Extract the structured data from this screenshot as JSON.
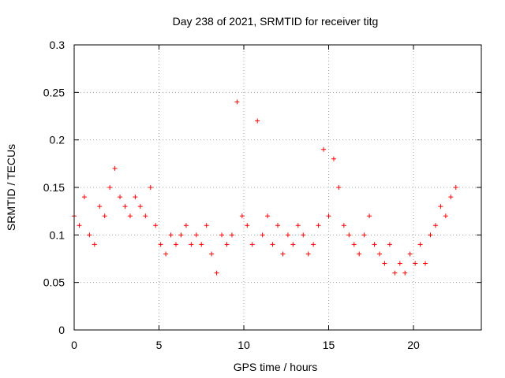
{
  "chart_data": {
    "type": "scatter",
    "title": "Day 238 of 2021, SRMTID for receiver titg",
    "xlabel": "GPS time / hours",
    "ylabel": "SRMTID / TECUs",
    "xlim": [
      0,
      24
    ],
    "ylim": [
      0,
      0.3
    ],
    "x_ticks": [
      0,
      5,
      10,
      15,
      20
    ],
    "x_tick_labels": [
      "0",
      "5",
      "10",
      "15",
      "20"
    ],
    "y_ticks": [
      0,
      0.05,
      0.1,
      0.15,
      0.2,
      0.25,
      0.3
    ],
    "y_tick_labels": [
      "0",
      "0.05",
      "0.1",
      "0.15",
      "0.2",
      "0.25",
      "0.3"
    ],
    "grid": true,
    "marker": "+",
    "color": "#ff0000",
    "series": [
      {
        "name": "SRMTID",
        "x": [
          0.0,
          0.3,
          0.6,
          0.9,
          1.2,
          1.5,
          1.8,
          2.1,
          2.4,
          2.7,
          3.0,
          3.3,
          3.6,
          3.9,
          4.2,
          4.5,
          4.8,
          5.1,
          5.4,
          5.7,
          6.0,
          6.3,
          6.6,
          6.9,
          7.2,
          7.5,
          7.8,
          8.1,
          8.4,
          8.7,
          9.0,
          9.3,
          9.6,
          9.9,
          10.2,
          10.5,
          10.8,
          11.1,
          11.4,
          11.7,
          12.0,
          12.3,
          12.6,
          12.9,
          13.2,
          13.5,
          13.8,
          14.1,
          14.4,
          14.7,
          15.0,
          15.3,
          15.6,
          15.9,
          16.2,
          16.5,
          16.8,
          17.1,
          17.4,
          17.7,
          18.0,
          18.3,
          18.6,
          18.9,
          19.2,
          19.5,
          19.8,
          20.1,
          20.4,
          20.7,
          21.0,
          21.3,
          21.6,
          21.9,
          22.2,
          22.5
        ],
        "y": [
          0.12,
          0.11,
          0.14,
          0.1,
          0.09,
          0.13,
          0.12,
          0.15,
          0.17,
          0.14,
          0.13,
          0.12,
          0.14,
          0.13,
          0.12,
          0.15,
          0.11,
          0.09,
          0.08,
          0.1,
          0.09,
          0.1,
          0.11,
          0.09,
          0.1,
          0.09,
          0.11,
          0.08,
          0.06,
          0.1,
          0.09,
          0.1,
          0.24,
          0.12,
          0.11,
          0.09,
          0.22,
          0.1,
          0.12,
          0.09,
          0.11,
          0.08,
          0.1,
          0.09,
          0.11,
          0.1,
          0.08,
          0.09,
          0.11,
          0.19,
          0.12,
          0.18,
          0.15,
          0.11,
          0.1,
          0.09,
          0.08,
          0.1,
          0.12,
          0.09,
          0.08,
          0.07,
          0.09,
          0.06,
          0.07,
          0.06,
          0.08,
          0.07,
          0.09,
          0.07,
          0.1,
          0.11,
          0.13,
          0.12,
          0.14,
          0.15
        ]
      }
    ]
  }
}
